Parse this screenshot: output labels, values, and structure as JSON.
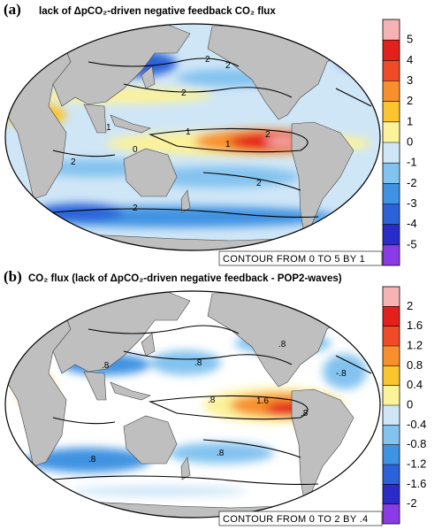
{
  "panels": [
    {
      "label": "(a)",
      "title": "lack of ΔpCO₂-driven negative feedback CO₂ flux",
      "contour_note": "CONTOUR FROM 0 TO 5 BY 1",
      "contour_labels": [
        "2",
        "2",
        "2",
        "1",
        "1",
        "0",
        "2",
        "2",
        "2",
        "2",
        "1"
      ],
      "colorbar": {
        "ticks": [
          5,
          4,
          3,
          2,
          1,
          0,
          -1,
          -2,
          -3,
          -4,
          -5
        ],
        "colors": [
          "#f6b3b3",
          "#e3201b",
          "#f04a28",
          "#f7902c",
          "#fbc52f",
          "#fcf29a",
          "#cfe6f7",
          "#83c3ef",
          "#3f93e2",
          "#2c62d9",
          "#2a2cc9",
          "#8b3be6"
        ]
      }
    },
    {
      "label": "(b)",
      "title": "CO₂ flux (lack of ΔpCO₂-driven negative feedback - POP2-waves)",
      "contour_note": "CONTOUR FROM 0 TO 2 BY .4",
      "contour_labels": [
        ".8",
        ".8",
        ".8",
        "1.6",
        ".8",
        ".8",
        ".8",
        ".8",
        "-.8"
      ],
      "colorbar": {
        "ticks": [
          2,
          1.6,
          1.2,
          0.8,
          0.4,
          0,
          -0.4,
          -0.8,
          -1.2,
          -1.6,
          -2
        ],
        "colors": [
          "#f6b3b3",
          "#e3201b",
          "#f04a28",
          "#f7902c",
          "#fbc52f",
          "#fcf29a",
          "#cfe6f7",
          "#83c3ef",
          "#3f93e2",
          "#2c62d9",
          "#2a2cc9",
          "#8b3be6"
        ]
      }
    }
  ]
}
